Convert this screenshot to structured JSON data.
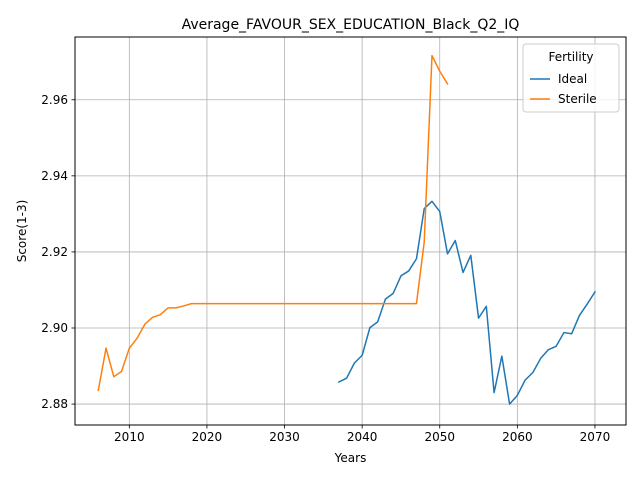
{
  "chart_data": {
    "type": "line",
    "title": "Average_FAVOUR_SEX_EDUCATION_Black_Q2_IQ",
    "xlabel": "Years",
    "ylabel": "Score(1-3)",
    "xlim": [
      2003,
      2074
    ],
    "ylim": [
      2.8745,
      2.9765
    ],
    "xticks": [
      2010,
      2020,
      2030,
      2040,
      2050,
      2060,
      2070
    ],
    "yticks": [
      2.88,
      2.9,
      2.92,
      2.94,
      2.96
    ],
    "grid": true,
    "legend": {
      "title": "Fertility",
      "position": "top-right"
    },
    "series": [
      {
        "name": "Ideal",
        "color": "#1f77b4",
        "x": [
          2037,
          2038,
          2039,
          2040,
          2041,
          2042,
          2043,
          2044,
          2045,
          2046,
          2047,
          2048,
          2049,
          2050,
          2051,
          2052,
          2053,
          2054,
          2055,
          2056,
          2057,
          2058,
          2059,
          2060,
          2061,
          2062,
          2063,
          2064,
          2065,
          2066,
          2067,
          2068,
          2069,
          2070
        ],
        "values": [
          2.8858,
          2.8868,
          2.8908,
          2.8928,
          2.9001,
          2.9016,
          2.9076,
          2.9091,
          2.9137,
          2.915,
          2.9182,
          2.9314,
          2.9333,
          2.9306,
          2.9195,
          2.923,
          2.9146,
          2.9191,
          2.9026,
          2.9057,
          2.883,
          2.8926,
          2.88,
          2.8823,
          2.8863,
          2.8883,
          2.892,
          2.8943,
          2.8952,
          2.8988,
          2.8985,
          2.9033,
          2.9063,
          2.9095
        ]
      },
      {
        "name": "Sterile",
        "color": "#ff7f0e",
        "x": [
          2006,
          2007,
          2008,
          2009,
          2010,
          2011,
          2012,
          2013,
          2014,
          2015,
          2016,
          2017,
          2018,
          2019,
          2020,
          2025,
          2030,
          2035,
          2040,
          2045,
          2046,
          2047,
          2048,
          2049,
          2050,
          2051
        ],
        "values": [
          2.8836,
          2.8947,
          2.8872,
          2.8886,
          2.8947,
          2.8973,
          2.901,
          2.9028,
          2.9035,
          2.9053,
          2.9053,
          2.9058,
          2.9064,
          2.9064,
          2.9064,
          2.9064,
          2.9064,
          2.9064,
          2.9064,
          2.9064,
          2.9064,
          2.9064,
          2.9226,
          2.9716,
          2.9675,
          2.9642
        ]
      }
    ]
  }
}
